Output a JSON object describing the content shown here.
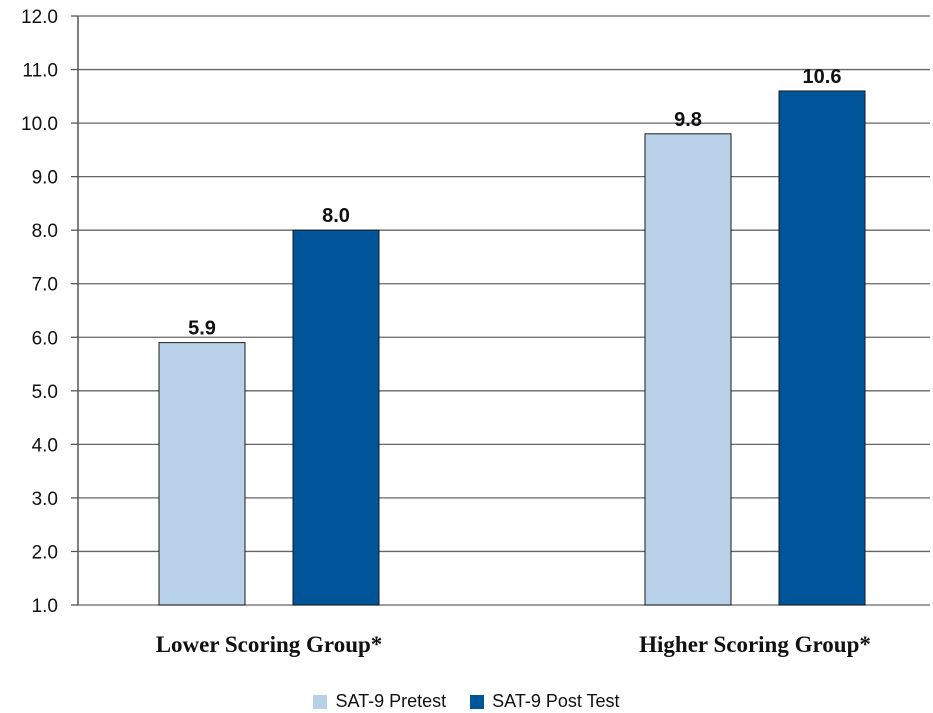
{
  "chart_data": {
    "type": "bar",
    "categories": [
      "Lower Scoring Group*",
      "Higher Scoring Group*"
    ],
    "series": [
      {
        "name": "SAT-9 Pretest",
        "values": [
          5.9,
          9.8
        ],
        "labels": [
          "5.9",
          "9.8"
        ],
        "color": "#b8d0e8"
      },
      {
        "name": "SAT-9 Post Test",
        "values": [
          8.0,
          10.6
        ],
        "labels": [
          "8.0",
          "10.6"
        ],
        "color": "#00549a"
      }
    ],
    "ylim": [
      1.0,
      12.0
    ],
    "yticks": [
      "1.0",
      "2.0",
      "3.0",
      "4.0",
      "5.0",
      "6.0",
      "7.0",
      "8.0",
      "9.0",
      "10.0",
      "11.0",
      "12.0"
    ],
    "grid": true,
    "legend_position": "bottom",
    "title": "",
    "xlabel": "",
    "ylabel": ""
  }
}
